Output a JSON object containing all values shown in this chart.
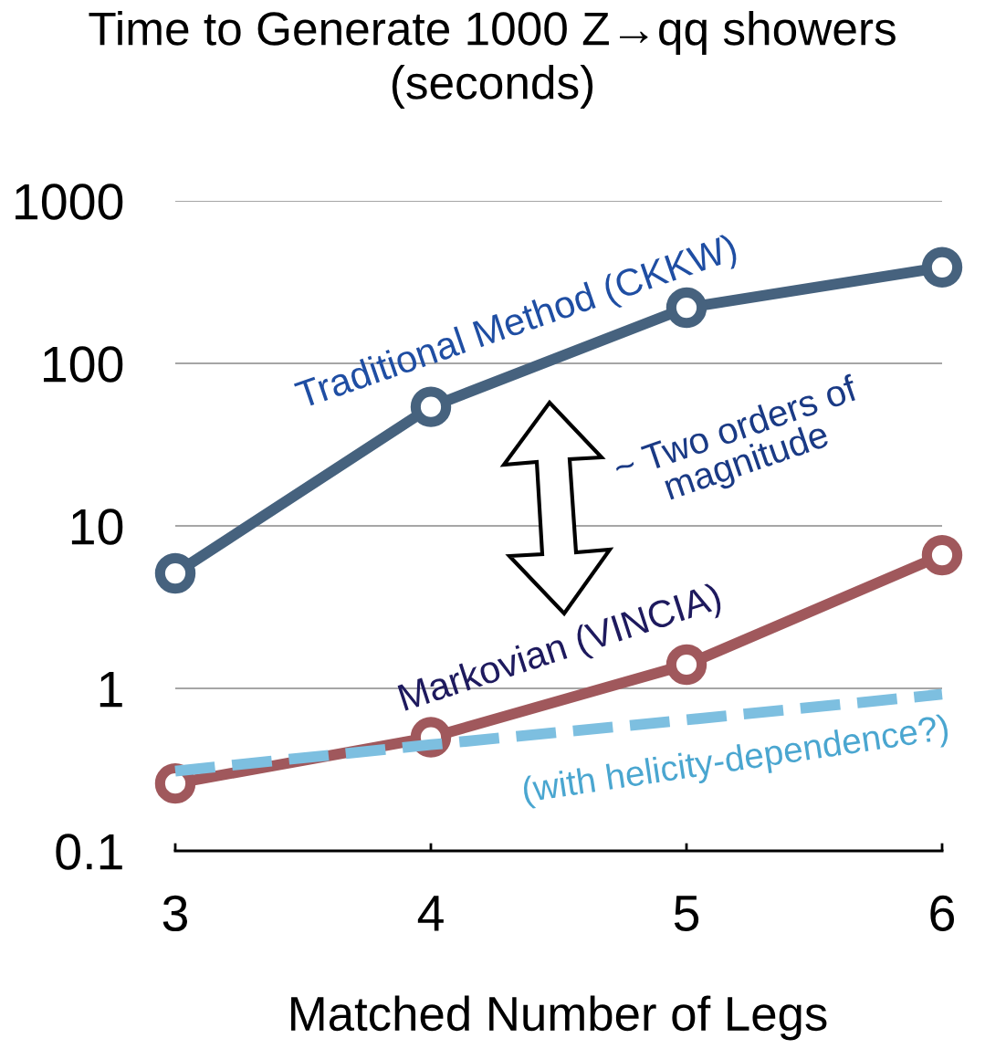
{
  "chart_data": {
    "type": "line",
    "title": "Time to Generate 1000 Z→qq showers\n(seconds)",
    "xlabel": "Matched Number of Legs",
    "categories": [
      "3",
      "4",
      "5",
      "6"
    ],
    "series": [
      {
        "name": "Traditional Method (CKKW)",
        "color": "#46627e",
        "values": [
          5.1,
          54,
          220,
          390
        ],
        "marker": "circle",
        "line_style": "solid"
      },
      {
        "name": "Markovian (VINCIA)",
        "color": "#a0585c",
        "values": [
          0.26,
          0.5,
          1.4,
          6.6
        ],
        "marker": "circle",
        "line_style": "solid"
      },
      {
        "name": "(with helicity-dependence?)",
        "color": "#7dbfe0",
        "values": [
          0.31,
          0.45,
          0.64,
          0.92
        ],
        "marker": "none",
        "line_style": "dashed"
      }
    ],
    "log": "y",
    "ylim": [
      0.1,
      1000
    ],
    "yticks": [
      0.1,
      1,
      10,
      100,
      1000
    ],
    "grid": "y",
    "legend": false,
    "annotations": [
      "~ Two orders of\nmagnitude"
    ]
  }
}
